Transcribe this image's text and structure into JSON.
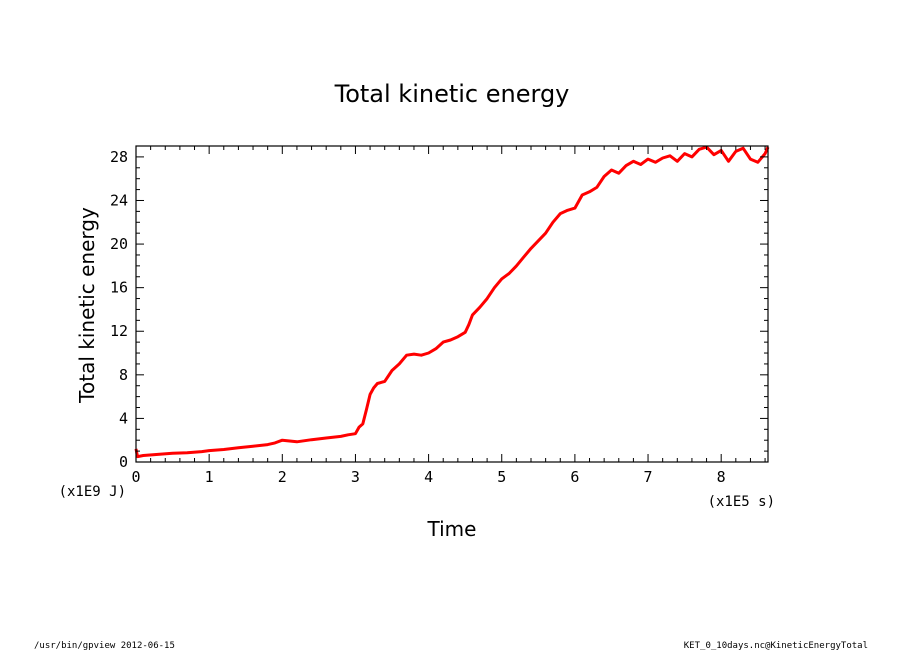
{
  "chart_data": {
    "type": "line",
    "title": "Total kinetic energy",
    "xlabel": "Time",
    "ylabel": "Total kinetic energy",
    "x_unit": "(x1E5 s)",
    "y_unit": "(x1E9 J)",
    "xlim": [
      0,
      8.64
    ],
    "ylim": [
      0,
      29
    ],
    "x_ticks": [
      0,
      1,
      2,
      3,
      4,
      5,
      6,
      7,
      8
    ],
    "y_ticks": [
      0,
      4,
      8,
      12,
      16,
      20,
      24,
      28
    ],
    "x_tick_labels": [
      "0",
      "1",
      "2",
      "3",
      "4",
      "5",
      "6",
      "7",
      "8"
    ],
    "y_tick_labels": [
      "0",
      "4",
      "8",
      "12",
      "16",
      "20",
      "24",
      "28"
    ],
    "grid": false,
    "series": [
      {
        "color": "#ff0000",
        "x": [
          0,
          0.02,
          0.1,
          0.3,
          0.5,
          0.7,
          0.9,
          1.0,
          1.2,
          1.4,
          1.6,
          1.8,
          1.9,
          2.0,
          2.2,
          2.4,
          2.6,
          2.8,
          2.9,
          3.0,
          3.05,
          3.1,
          3.15,
          3.2,
          3.25,
          3.3,
          3.4,
          3.5,
          3.6,
          3.7,
          3.8,
          3.9,
          4.0,
          4.1,
          4.2,
          4.3,
          4.4,
          4.5,
          4.55,
          4.6,
          4.7,
          4.8,
          4.9,
          5.0,
          5.1,
          5.2,
          5.3,
          5.4,
          5.5,
          5.6,
          5.7,
          5.8,
          5.9,
          6.0,
          6.1,
          6.2,
          6.3,
          6.4,
          6.5,
          6.6,
          6.7,
          6.8,
          6.9,
          7.0,
          7.1,
          7.2,
          7.3,
          7.4,
          7.5,
          7.6,
          7.7,
          7.8,
          7.9,
          8.0,
          8.1,
          8.2,
          8.3,
          8.4,
          8.5,
          8.6,
          8.64
        ],
        "y": [
          1.2,
          0.5,
          0.6,
          0.7,
          0.8,
          0.85,
          0.95,
          1.05,
          1.15,
          1.3,
          1.45,
          1.6,
          1.75,
          2.0,
          1.85,
          2.05,
          2.2,
          2.35,
          2.5,
          2.6,
          3.2,
          3.5,
          4.8,
          6.2,
          6.8,
          7.2,
          7.4,
          8.4,
          9.0,
          9.8,
          9.9,
          9.8,
          10.0,
          10.4,
          11.0,
          11.2,
          11.5,
          11.9,
          12.6,
          13.5,
          14.2,
          15.0,
          16.0,
          16.8,
          17.3,
          18.0,
          18.8,
          19.6,
          20.3,
          21.0,
          22.0,
          22.8,
          23.1,
          23.3,
          24.5,
          24.8,
          25.2,
          26.2,
          26.8,
          26.5,
          27.2,
          27.6,
          27.3,
          27.8,
          27.5,
          27.9,
          28.1,
          27.6,
          28.3,
          28.0,
          28.7,
          28.9,
          28.2,
          28.6,
          27.6,
          28.5,
          28.8,
          27.8,
          27.5,
          28.3,
          28.9
        ]
      }
    ]
  },
  "footer": {
    "left": "/usr/bin/gpview  2012-06-15",
    "right": "KET_0_10days.nc@KineticEnergyTotal"
  }
}
